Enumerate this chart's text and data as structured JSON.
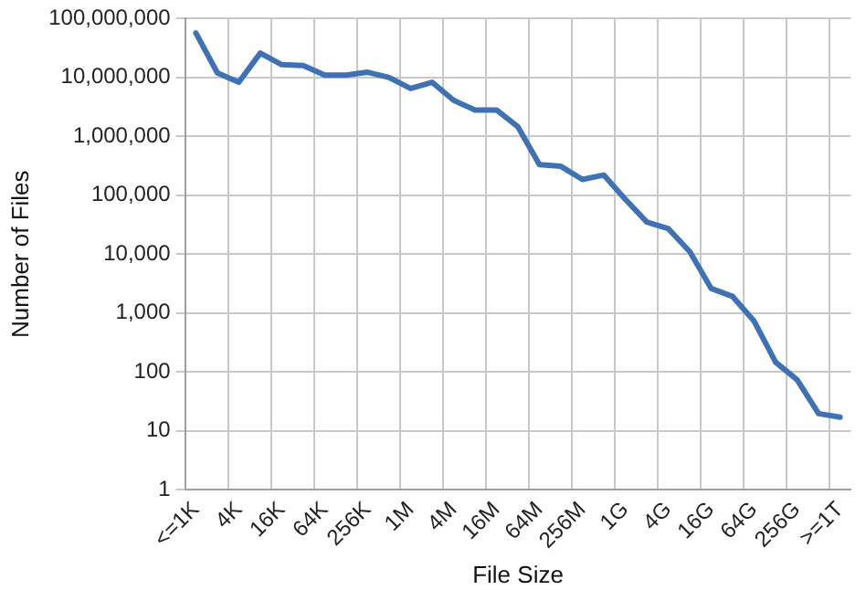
{
  "chart_data": {
    "type": "line",
    "xlabel": "File Size",
    "ylabel": "Number of Files",
    "categories": [
      "<=1K",
      null,
      "4K",
      null,
      "16K",
      null,
      "64K",
      null,
      "256K",
      null,
      "1M",
      null,
      "4M",
      null,
      "16M",
      null,
      "64M",
      null,
      "256M",
      null,
      "1G",
      null,
      "4G",
      null,
      "16G",
      null,
      "64G",
      null,
      "256G",
      null,
      ">=1T"
    ],
    "series": [
      {
        "color": "#3f72b5",
        "values": [
          57000000,
          12000000,
          8300000,
          26000000,
          16500000,
          16000000,
          11000000,
          11000000,
          12300000,
          10000000,
          6500000,
          8300000,
          4100000,
          2800000,
          2800000,
          1450000,
          330000,
          310000,
          185000,
          220000,
          85000,
          35000,
          27000,
          11000,
          2600,
          1900,
          720,
          145,
          73,
          19.5,
          17
        ]
      }
    ],
    "log": "y",
    "ylim": [
      1,
      100000000
    ],
    "yticks": [
      1,
      10,
      100,
      {
        "value": 1000,
        "label": "1,000"
      },
      {
        "value": 10000,
        "label": "10,000"
      },
      {
        "value": 100000,
        "label": "100,000"
      },
      {
        "value": 1000000,
        "label": "1,000,000"
      },
      {
        "value": 10000000,
        "label": "10,000,000"
      },
      {
        "value": 100000000,
        "label": "100,000,000"
      }
    ],
    "grid": true,
    "marker": "none",
    "line_style": "solid",
    "legend": false
  }
}
